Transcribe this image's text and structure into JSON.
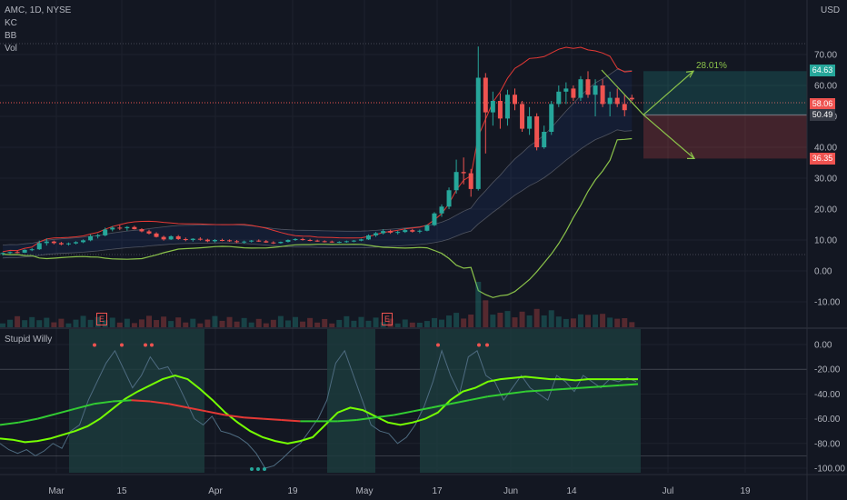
{
  "chart_data": [
    {
      "type": "candlestick",
      "title": "AMC, 1D, NYSE",
      "overlays": [
        "KC",
        "BB",
        "Vol"
      ],
      "currency": "USD",
      "ylim": [
        -15,
        80
      ],
      "y_ticks": [
        70,
        60,
        50,
        40,
        30,
        20,
        10,
        0,
        -10
      ],
      "y_tick_labels": [
        "70.00",
        "60.00",
        "50.00",
        "40.00",
        "30.00",
        "20.00",
        "10.00",
        "0.00",
        "-10.00"
      ],
      "x_tick_labels": [
        "Mar",
        "15",
        "Apr",
        "19",
        "May",
        "17",
        "Jun",
        "14",
        "Jul",
        "19"
      ],
      "candles": [
        [
          5.5,
          6.0,
          5.0,
          5.8
        ],
        [
          5.8,
          6.3,
          5.5,
          6.1
        ],
        [
          6.1,
          6.5,
          5.7,
          5.9
        ],
        [
          5.9,
          7.0,
          5.8,
          6.8
        ],
        [
          6.8,
          7.4,
          6.4,
          7.0
        ],
        [
          7.0,
          9.8,
          6.8,
          9.0
        ],
        [
          9.0,
          10.5,
          8.2,
          9.5
        ],
        [
          9.5,
          9.8,
          8.6,
          9.0
        ],
        [
          9.0,
          9.4,
          8.3,
          8.6
        ],
        [
          8.6,
          9.2,
          8.2,
          8.9
        ],
        [
          8.9,
          9.6,
          8.6,
          9.3
        ],
        [
          9.3,
          10.2,
          9.0,
          9.9
        ],
        [
          9.9,
          11.8,
          9.6,
          11.2
        ],
        [
          11.2,
          12.0,
          10.5,
          11.5
        ],
        [
          11.5,
          14.0,
          11.2,
          13.4
        ],
        [
          13.4,
          14.5,
          12.8,
          14.0
        ],
        [
          14.0,
          14.8,
          13.2,
          13.8
        ],
        [
          13.8,
          14.5,
          13.0,
          14.2
        ],
        [
          14.2,
          14.6,
          13.4,
          13.5
        ],
        [
          13.5,
          13.8,
          12.5,
          12.8
        ],
        [
          12.8,
          13.3,
          11.8,
          12.1
        ],
        [
          12.1,
          12.5,
          10.8,
          11.0
        ],
        [
          11.0,
          11.4,
          9.8,
          10.2
        ],
        [
          10.2,
          11.5,
          10.0,
          11.2
        ],
        [
          11.2,
          11.6,
          10.0,
          10.3
        ],
        [
          10.3,
          10.8,
          9.6,
          10.0
        ],
        [
          10.0,
          10.6,
          9.5,
          10.4
        ],
        [
          10.4,
          10.9,
          9.8,
          10.1
        ],
        [
          10.1,
          10.4,
          9.3,
          9.6
        ],
        [
          9.6,
          10.3,
          9.2,
          10.0
        ],
        [
          10.0,
          10.4,
          9.6,
          9.9
        ],
        [
          9.9,
          10.2,
          9.4,
          9.6
        ],
        [
          9.6,
          10.0,
          9.0,
          9.3
        ],
        [
          9.3,
          9.8,
          8.8,
          9.5
        ],
        [
          9.5,
          10.0,
          9.2,
          9.8
        ],
        [
          9.8,
          10.2,
          9.4,
          9.6
        ],
        [
          9.6,
          10.0,
          9.1,
          9.2
        ],
        [
          9.2,
          9.6,
          8.7,
          9.0
        ],
        [
          9.0,
          9.5,
          8.8,
          9.4
        ],
        [
          9.4,
          10.2,
          9.2,
          10.0
        ],
        [
          10.0,
          10.6,
          9.7,
          10.3
        ],
        [
          10.3,
          10.7,
          9.8,
          10.0
        ],
        [
          10.0,
          10.4,
          9.6,
          9.8
        ],
        [
          9.8,
          10.1,
          9.4,
          9.6
        ],
        [
          9.6,
          9.9,
          9.2,
          9.5
        ],
        [
          9.5,
          9.8,
          9.1,
          9.3
        ],
        [
          9.3,
          9.6,
          9.0,
          9.4
        ],
        [
          9.4,
          9.8,
          9.1,
          9.6
        ],
        [
          9.6,
          10.0,
          9.3,
          9.8
        ],
        [
          9.8,
          10.4,
          9.6,
          10.2
        ],
        [
          10.2,
          11.8,
          10.0,
          11.5
        ],
        [
          11.5,
          12.6,
          11.0,
          12.2
        ],
        [
          12.2,
          13.5,
          11.8,
          12.9
        ],
        [
          12.9,
          13.3,
          12.0,
          12.4
        ],
        [
          12.4,
          13.0,
          11.8,
          12.6
        ],
        [
          12.6,
          13.8,
          12.3,
          13.2
        ],
        [
          13.2,
          13.6,
          12.4,
          12.7
        ],
        [
          12.7,
          13.4,
          12.2,
          13.0
        ],
        [
          13.0,
          15.0,
          12.8,
          14.8
        ],
        [
          14.8,
          19.0,
          14.5,
          18.6
        ],
        [
          18.6,
          21.5,
          17.5,
          20.8
        ],
        [
          20.8,
          27.0,
          20.0,
          26.1
        ],
        [
          26.1,
          36.0,
          25.0,
          32.0
        ],
        [
          32.0,
          36.7,
          28.0,
          31.6
        ],
        [
          31.6,
          33.0,
          24.0,
          26.5
        ],
        [
          26.5,
          72.6,
          26.0,
          62.5
        ],
        [
          62.5,
          64.0,
          38.0,
          51.3
        ],
        [
          51.3,
          58.0,
          47.0,
          55.0
        ],
        [
          55.0,
          57.5,
          46.0,
          49.3
        ],
        [
          49.3,
          58.6,
          47.0,
          57.0
        ],
        [
          57.0,
          59.0,
          52.0,
          54.0
        ],
        [
          54.0,
          55.0,
          45.0,
          46.0
        ],
        [
          46.0,
          53.0,
          44.0,
          50.0
        ],
        [
          50.0,
          51.0,
          39.0,
          40.0
        ],
        [
          40.0,
          47.0,
          39.5,
          45.0
        ],
        [
          45.0,
          55.0,
          44.0,
          54.0
        ],
        [
          54.0,
          60.0,
          53.0,
          58.0
        ],
        [
          58.0,
          61.0,
          54.0,
          59.0
        ],
        [
          59.0,
          60.0,
          55.0,
          56.0
        ],
        [
          56.0,
          63.0,
          55.0,
          62.0
        ],
        [
          62.0,
          64.6,
          56.0,
          57.0
        ],
        [
          57.0,
          62.0,
          50.0,
          60.0
        ],
        [
          60.0,
          62.0,
          53.0,
          54.0
        ],
        [
          54.0,
          58.0,
          50.0,
          56.0
        ],
        [
          56.0,
          59.0,
          53.0,
          54.0
        ],
        [
          54.0,
          57.0,
          50.0,
          52.0
        ],
        [
          56.0,
          57.0,
          55.0,
          55.5
        ]
      ],
      "price_tags": [
        "64.63",
        "58.06",
        "50.49",
        "36.35"
      ],
      "tag_colors": [
        "#26a69a",
        "#ef5350",
        "#363a45",
        "#ef5350"
      ],
      "annotation": {
        "label": "28.01%",
        "entry": 50.49,
        "target": 64.63,
        "stop": 36.35
      },
      "earnings_marker": "E",
      "colors": {
        "up": "#26a69a",
        "down": "#ef5350",
        "bb_lower": "#8bc34a",
        "upper_band": "#e53935",
        "target_line": "#8bc34a"
      }
    },
    {
      "type": "line",
      "title": "Stupid Willy",
      "ylim": [
        -105,
        5
      ],
      "y_ticks": [
        0,
        -20,
        -40,
        -60,
        -80,
        -100
      ],
      "y_tick_labels": [
        "0.00",
        "-20.00",
        "-40.00",
        "-60.00",
        "-80.00",
        "-100.00"
      ],
      "series": [
        {
          "values": [
            -80,
            -85,
            -88,
            -85,
            -90,
            -86,
            -80,
            -84,
            -70,
            -65,
            -45,
            -30,
            -15,
            -5,
            -20,
            -35,
            -25,
            -10,
            -20,
            -18,
            -30,
            -45,
            -60,
            -65,
            -58,
            -70,
            -72,
            -75,
            -80,
            -88,
            -100,
            -98,
            -92,
            -85,
            -80,
            -70,
            -60,
            -45,
            -15,
            -5,
            -25,
            -45,
            -65,
            -70,
            -72,
            -80,
            -75,
            -65,
            -50,
            -30,
            -5,
            -25,
            -40,
            -10,
            -5,
            -25,
            -30,
            -45,
            -35,
            -25,
            -35,
            -40,
            -45,
            -25,
            -30,
            -38,
            -25,
            -30,
            -35,
            -28,
            -30,
            -27,
            -30
          ]
        },
        {
          "values": [
            -76,
            -77,
            -79,
            -78,
            -76,
            -73,
            -70,
            -66,
            -60,
            -52,
            -44,
            -38,
            -33,
            -28,
            -25,
            -28,
            -36,
            -45,
            -55,
            -63,
            -70,
            -75,
            -78,
            -80,
            -78,
            -75,
            -65,
            -55,
            -51,
            -53,
            -58,
            -63,
            -65,
            -63,
            -60,
            -55,
            -45,
            -38,
            -35,
            -30,
            -28,
            -27,
            -26,
            -27,
            -28,
            -28,
            -29,
            -28,
            -28,
            -28,
            -28,
            -28
          ]
        },
        {
          "values": [
            -65,
            -63,
            -60,
            -56,
            -52,
            -48,
            -46,
            -45,
            -46,
            -48,
            -51,
            -54,
            -57,
            -59,
            -60,
            -61,
            -62,
            -62,
            -62,
            -61,
            -59,
            -57,
            -54,
            -51,
            -48,
            -45,
            -42,
            -40,
            -38,
            -37,
            -36,
            -35,
            -34,
            -33,
            -32
          ]
        }
      ],
      "markers": [
        "red dots near 0",
        "green dots near -100"
      ],
      "colors": {
        "raw": "#4e6b80",
        "fast": "#76ff03",
        "slow_up": "#32cd32",
        "slow_down": "#e53935",
        "zone": "#1d3d3f"
      }
    }
  ]
}
